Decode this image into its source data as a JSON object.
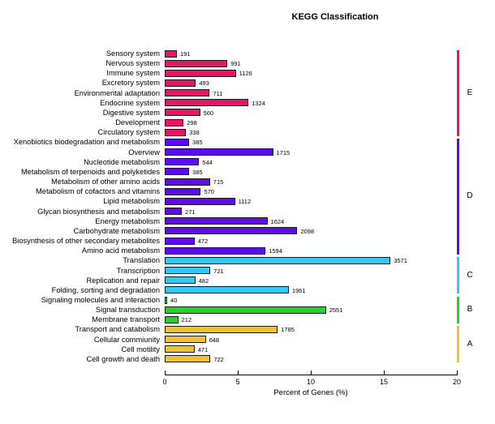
{
  "chart_data": {
    "type": "bar",
    "orientation": "horizontal",
    "title": "KEGG Classification",
    "xlabel": "Percent of Genes (%)",
    "xlim": [
      0,
      20
    ],
    "xticks": [
      0,
      5,
      10,
      15,
      20
    ],
    "grid": false,
    "bar_value_meaning": "number of genes",
    "groups": [
      {
        "letter": "E",
        "color": "#E81665",
        "items": [
          {
            "label": "Sensory system",
            "count": 191,
            "percent": 0.83
          },
          {
            "label": "Nervous system",
            "count": 991,
            "percent": 4.29
          },
          {
            "label": "Immune system",
            "count": 1126,
            "percent": 4.87
          },
          {
            "label": "Excretory system",
            "count": 493,
            "percent": 2.13
          },
          {
            "label": "Environmental adaptation",
            "count": 711,
            "percent": 3.08
          },
          {
            "label": "Endocrine system",
            "count": 1324,
            "percent": 5.73
          },
          {
            "label": "Digestive system",
            "count": 560,
            "percent": 2.42
          },
          {
            "label": "Development",
            "count": 298,
            "percent": 1.29
          },
          {
            "label": "Circulatory system",
            "count": 338,
            "percent": 1.46
          }
        ]
      },
      {
        "letter": "D",
        "color": "#5C0DE8",
        "items": [
          {
            "label": "Xenobiotics biodegradation and metabolism",
            "count": 385,
            "percent": 1.67
          },
          {
            "label": "Overview",
            "count": 1715,
            "percent": 7.42
          },
          {
            "label": "Nucleotide metabolism",
            "count": 544,
            "percent": 2.35
          },
          {
            "label": "Metabolism of terpenoids and polyketides",
            "count": 385,
            "percent": 1.67
          },
          {
            "label": "Metabolism of other amino acids",
            "count": 715,
            "percent": 3.1
          },
          {
            "label": "Metabolism of cofactors and vitamins",
            "count": 570,
            "percent": 2.47
          },
          {
            "label": "Lipid metabolism",
            "count": 1112,
            "percent": 4.81
          },
          {
            "label": "Glycan biosynthesis and metabolism",
            "count": 271,
            "percent": 1.17
          },
          {
            "label": "Energy metabolism",
            "count": 1624,
            "percent": 7.03
          },
          {
            "label": "Carbohydrate metabolism",
            "count": 2098,
            "percent": 9.08
          },
          {
            "label": "Biosynthesis of other secondary metabolites",
            "count": 472,
            "percent": 2.04
          },
          {
            "label": "Amino acid metabolism",
            "count": 1594,
            "percent": 6.9
          }
        ]
      },
      {
        "letter": "C",
        "color": "#39C6EF",
        "items": [
          {
            "label": "Translation",
            "count": 3571,
            "percent": 15.46
          },
          {
            "label": "Transcription",
            "count": 721,
            "percent": 3.12
          },
          {
            "label": "Replication and repair",
            "count": 482,
            "percent": 2.09
          },
          {
            "label": "Folding, sorting and degradation",
            "count": 1961,
            "percent": 8.49
          }
        ]
      },
      {
        "letter": "B",
        "color": "#28D228",
        "items": [
          {
            "label": "Signaling molecules and interaction",
            "count": 40,
            "percent": 0.17
          },
          {
            "label": "Signal transduction",
            "count": 2551,
            "percent": 11.04
          },
          {
            "label": "Membrane transport",
            "count": 212,
            "percent": 0.92
          }
        ]
      },
      {
        "letter": "A",
        "color": "#F0C232",
        "items": [
          {
            "label": "Transport and catabolism",
            "count": 1785,
            "percent": 7.73
          },
          {
            "label": "Cellular commiunity",
            "count": 648,
            "percent": 2.81
          },
          {
            "label": "Cell motility",
            "count": 471,
            "percent": 2.04
          },
          {
            "label": "Cell growth and death",
            "count": 722,
            "percent": 3.13
          }
        ]
      }
    ]
  }
}
